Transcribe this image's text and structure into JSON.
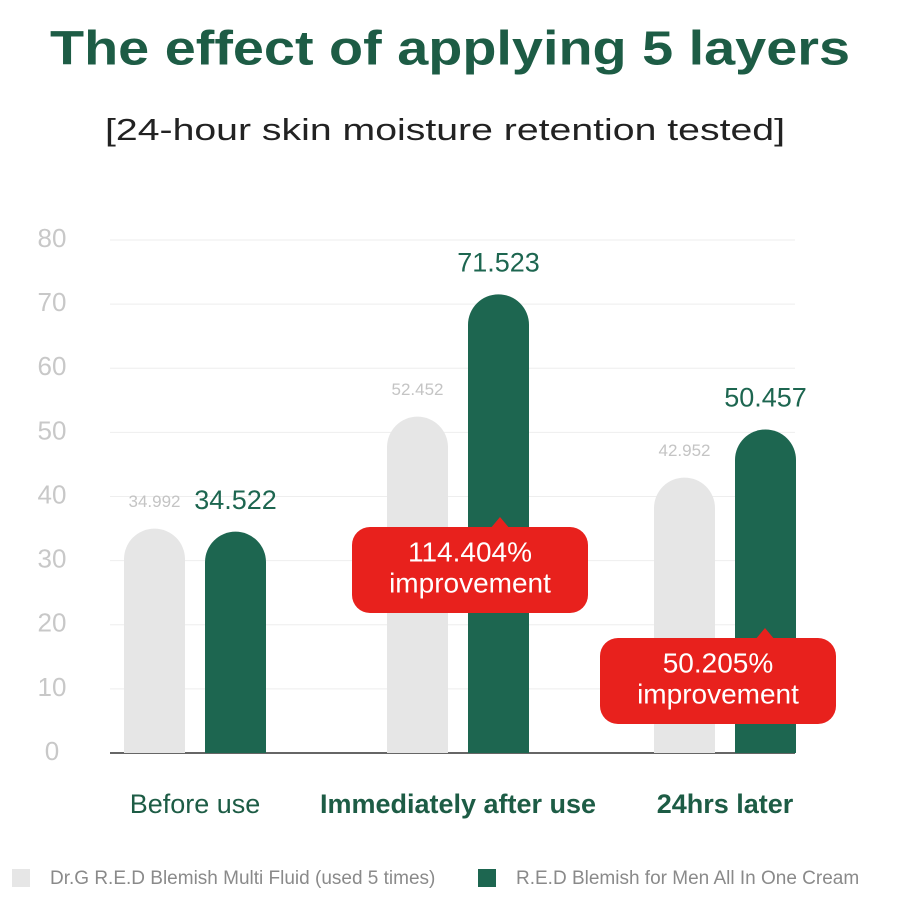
{
  "chart_data": {
    "type": "bar",
    "title": "The effect of applying 5 layers",
    "subtitle": "[24-hour skin moisture retention tested]",
    "categories": [
      "Before use",
      "Immediately after use",
      "24hrs later"
    ],
    "series": [
      {
        "name": "Dr.G R.E.D Blemish Multi Fluid (used 5 times)",
        "color": "#e6e6e6",
        "values": [
          34.992,
          52.452,
          42.952
        ]
      },
      {
        "name": "R.E.D Blemish for Men All In One Cream",
        "color": "#1d6650",
        "values": [
          34.522,
          71.523,
          50.457
        ]
      }
    ],
    "ylim": [
      0,
      80
    ],
    "yticks": [
      0,
      10,
      20,
      30,
      40,
      50,
      60,
      70,
      80
    ],
    "grid": true,
    "annotations": [
      {
        "text": "114.404%",
        "subtext": "improvement"
      },
      {
        "text": "50.205%",
        "subtext": "improvement"
      }
    ],
    "annotation_color": "#e8211d"
  }
}
